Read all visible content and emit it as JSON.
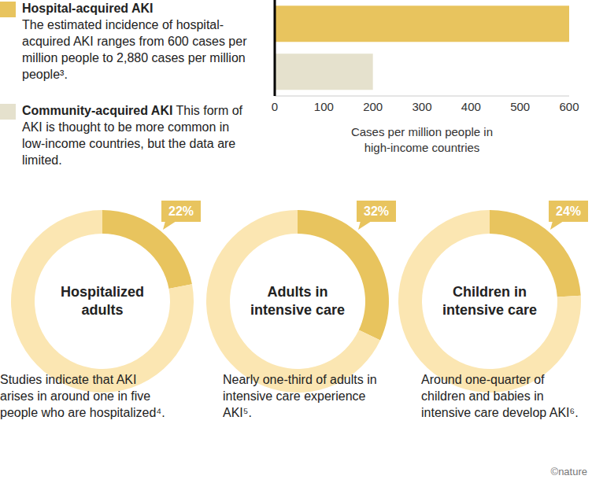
{
  "chart_data": [
    {
      "type": "bar",
      "orientation": "horizontal",
      "categories": [
        "Hospital-acquired AKI",
        "Community-acquired AKI"
      ],
      "descriptions": [
        "The estimated incidence  of hospital-acquired AKI ranges from 600 cases per million people to 2,880 cases per million people³.",
        "This form of AKI is thought to be more common in low-income countries, but the data are limited."
      ],
      "values": [
        600,
        200
      ],
      "colors": [
        "#e8c45e",
        "#e5e1cd"
      ],
      "x_label": "Cases per million people in high-income countries",
      "xlim": [
        0,
        600
      ],
      "xticks": [
        0,
        100,
        200,
        300,
        400,
        500,
        600
      ],
      "tick_labels": "x",
      "legend": "left"
    },
    {
      "type": "pie",
      "title": "Hospitalized adults",
      "caption": "Studies indicate that AKI arises in around one in five people who are hospitalized⁴.",
      "values": [
        22,
        78
      ],
      "value_labels": [
        "22%",
        null
      ],
      "colors": [
        "#e8c45e",
        "#fbe6b2"
      ],
      "data_labels": true
    },
    {
      "type": "pie",
      "title": "Adults in intensive care",
      "caption": "Nearly one-third of adults in intensive care experience AKI⁵.",
      "values": [
        32,
        68
      ],
      "value_labels": [
        "32%",
        null
      ],
      "colors": [
        "#e8c45e",
        "#fbe6b2"
      ],
      "data_labels": true
    },
    {
      "type": "pie",
      "title": "Children in intensive care",
      "caption": "Around one-quarter of children and babies in intensive care develop AKI⁶.",
      "values": [
        24,
        76
      ],
      "value_labels": [
        "24%",
        null
      ],
      "colors": [
        "#e8c45e",
        "#fbe6b2"
      ],
      "data_labels": true
    }
  ],
  "credit": "©nature"
}
